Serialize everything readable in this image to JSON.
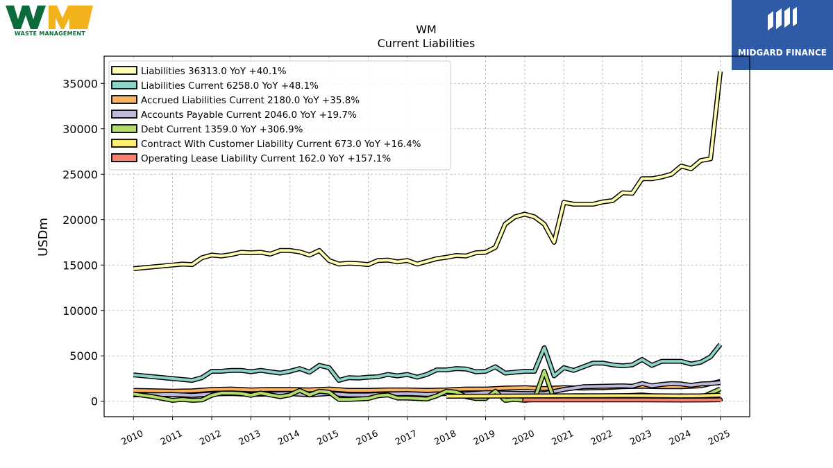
{
  "branding": {
    "left_logo_text": "WASTE MANAGEMENT",
    "right_logo_text": "MIDGARD FINANCE"
  },
  "chart_data": {
    "type": "line",
    "title": "WM",
    "subtitle": "Current  Liabilities",
    "xlabel": "",
    "ylabel": "USDm",
    "ylim": [
      -1700,
      38000
    ],
    "xlim": [
      2009.25,
      2025.75
    ],
    "yticks": [
      0,
      5000,
      10000,
      15000,
      20000,
      25000,
      30000,
      35000
    ],
    "ytick_labels": [
      "0",
      "5000",
      "10000",
      "15000",
      "20000",
      "25000",
      "30000",
      "35000"
    ],
    "xticks": [
      2010,
      2011,
      2012,
      2013,
      2014,
      2015,
      2016,
      2017,
      2018,
      2019,
      2020,
      2021,
      2022,
      2023,
      2024,
      2025
    ],
    "xtick_labels": [
      "2010",
      "2011",
      "2012",
      "2013",
      "2014",
      "2015",
      "2016",
      "2017",
      "2018",
      "2019",
      "2020",
      "2021",
      "2022",
      "2023",
      "2024",
      "2025"
    ],
    "grid": true,
    "legend_position": "top-left",
    "series": [
      {
        "name": "Liabilities  36313.0 YoY +40.1%",
        "color": "#ffffb3",
        "points": [
          [
            2010.0,
            14600
          ],
          [
            2011.0,
            15000
          ],
          [
            2011.25,
            15100
          ],
          [
            2011.5,
            15050
          ],
          [
            2011.75,
            15800
          ],
          [
            2012.0,
            16100
          ],
          [
            2012.25,
            16000
          ],
          [
            2012.5,
            16150
          ],
          [
            2012.75,
            16400
          ],
          [
            2013.0,
            16350
          ],
          [
            2013.25,
            16400
          ],
          [
            2013.5,
            16200
          ],
          [
            2013.75,
            16600
          ],
          [
            2014.0,
            16600
          ],
          [
            2014.25,
            16450
          ],
          [
            2014.5,
            16100
          ],
          [
            2014.75,
            16600
          ],
          [
            2015.0,
            15500
          ],
          [
            2015.25,
            15100
          ],
          [
            2015.5,
            15200
          ],
          [
            2015.75,
            15150
          ],
          [
            2016.0,
            15050
          ],
          [
            2016.25,
            15500
          ],
          [
            2016.5,
            15550
          ],
          [
            2016.75,
            15350
          ],
          [
            2017.0,
            15500
          ],
          [
            2017.25,
            15100
          ],
          [
            2017.5,
            15400
          ],
          [
            2017.75,
            15700
          ],
          [
            2018.0,
            15850
          ],
          [
            2018.25,
            16050
          ],
          [
            2018.5,
            16000
          ],
          [
            2018.75,
            16350
          ],
          [
            2019.0,
            16400
          ],
          [
            2019.25,
            16950
          ],
          [
            2019.5,
            19500
          ],
          [
            2019.75,
            20300
          ],
          [
            2020.0,
            20600
          ],
          [
            2020.25,
            20300
          ],
          [
            2020.5,
            19500
          ],
          [
            2020.75,
            17500
          ],
          [
            2021.0,
            21900
          ],
          [
            2021.25,
            21700
          ],
          [
            2021.5,
            21700
          ],
          [
            2021.75,
            21700
          ],
          [
            2022.0,
            21950
          ],
          [
            2022.25,
            22100
          ],
          [
            2022.5,
            22950
          ],
          [
            2022.75,
            22900
          ],
          [
            2023.0,
            24500
          ],
          [
            2023.25,
            24500
          ],
          [
            2023.5,
            24700
          ],
          [
            2023.75,
            25000
          ],
          [
            2024.0,
            25900
          ],
          [
            2024.25,
            25600
          ],
          [
            2024.5,
            26500
          ],
          [
            2024.75,
            26700
          ],
          [
            2025.0,
            36313
          ]
        ]
      },
      {
        "name": "Liabilities Current  6258.0 YoY +48.1%",
        "color": "#8dd3c7",
        "points": [
          [
            2010.0,
            2900
          ],
          [
            2011.0,
            2500
          ],
          [
            2011.25,
            2400
          ],
          [
            2011.5,
            2300
          ],
          [
            2011.75,
            2600
          ],
          [
            2012.0,
            3300
          ],
          [
            2012.25,
            3300
          ],
          [
            2012.5,
            3400
          ],
          [
            2012.75,
            3400
          ],
          [
            2013.0,
            3250
          ],
          [
            2013.25,
            3400
          ],
          [
            2013.5,
            3250
          ],
          [
            2013.75,
            3100
          ],
          [
            2014.0,
            3300
          ],
          [
            2014.25,
            3600
          ],
          [
            2014.5,
            3200
          ],
          [
            2014.75,
            3950
          ],
          [
            2015.0,
            3700
          ],
          [
            2015.25,
            2300
          ],
          [
            2015.5,
            2600
          ],
          [
            2015.75,
            2550
          ],
          [
            2016.0,
            2650
          ],
          [
            2016.25,
            2700
          ],
          [
            2016.5,
            2950
          ],
          [
            2016.75,
            2800
          ],
          [
            2017.0,
            2950
          ],
          [
            2017.25,
            2650
          ],
          [
            2017.5,
            2950
          ],
          [
            2017.75,
            3450
          ],
          [
            2018.0,
            3450
          ],
          [
            2018.25,
            3600
          ],
          [
            2018.5,
            3550
          ],
          [
            2018.75,
            3250
          ],
          [
            2019.0,
            3300
          ],
          [
            2019.25,
            3800
          ],
          [
            2019.5,
            3100
          ],
          [
            2019.75,
            3200
          ],
          [
            2020.0,
            3300
          ],
          [
            2020.25,
            3300
          ],
          [
            2020.5,
            5900
          ],
          [
            2020.75,
            2800
          ],
          [
            2021.0,
            3700
          ],
          [
            2021.25,
            3400
          ],
          [
            2021.5,
            3800
          ],
          [
            2021.75,
            4200
          ],
          [
            2022.0,
            4200
          ],
          [
            2022.25,
            4000
          ],
          [
            2022.5,
            3900
          ],
          [
            2022.75,
            4000
          ],
          [
            2023.0,
            4600
          ],
          [
            2023.25,
            3950
          ],
          [
            2023.5,
            4400
          ],
          [
            2023.75,
            4400
          ],
          [
            2024.0,
            4400
          ],
          [
            2024.25,
            4100
          ],
          [
            2024.5,
            4300
          ],
          [
            2024.75,
            4900
          ],
          [
            2025.0,
            6258
          ]
        ]
      },
      {
        "name": "Accrued Liabilities Current  2180.0 YoY +35.8%",
        "color": "#fdb462",
        "points": [
          [
            2010.0,
            1200
          ],
          [
            2011.0,
            1100
          ],
          [
            2011.5,
            1150
          ],
          [
            2012.0,
            1300
          ],
          [
            2012.5,
            1350
          ],
          [
            2013.0,
            1250
          ],
          [
            2013.5,
            1300
          ],
          [
            2014.0,
            1300
          ],
          [
            2014.5,
            1250
          ],
          [
            2015.0,
            1350
          ],
          [
            2015.5,
            1200
          ],
          [
            2016.0,
            1200
          ],
          [
            2016.5,
            1250
          ],
          [
            2017.0,
            1250
          ],
          [
            2017.5,
            1200
          ],
          [
            2018.0,
            1250
          ],
          [
            2018.5,
            1350
          ],
          [
            2019.0,
            1350
          ],
          [
            2019.5,
            1450
          ],
          [
            2020.0,
            1500
          ],
          [
            2020.5,
            1400
          ],
          [
            2021.0,
            1500
          ],
          [
            2021.5,
            1450
          ],
          [
            2022.0,
            1500
          ],
          [
            2022.5,
            1600
          ],
          [
            2023.0,
            1650
          ],
          [
            2023.5,
            1600
          ],
          [
            2024.0,
            1600
          ],
          [
            2024.5,
            1700
          ],
          [
            2025.0,
            2180
          ]
        ]
      },
      {
        "name": "Accounts Payable Current  2046.0 YoY +19.7%",
        "color": "#bebada",
        "points": [
          [
            2010.0,
            700
          ],
          [
            2011.0,
            750
          ],
          [
            2011.5,
            650
          ],
          [
            2012.0,
            800
          ],
          [
            2012.5,
            850
          ],
          [
            2013.0,
            750
          ],
          [
            2013.5,
            800
          ],
          [
            2014.0,
            850
          ],
          [
            2014.5,
            700
          ],
          [
            2015.0,
            850
          ],
          [
            2015.5,
            700
          ],
          [
            2016.0,
            700
          ],
          [
            2016.5,
            800
          ],
          [
            2017.0,
            850
          ],
          [
            2017.5,
            750
          ],
          [
            2018.0,
            850
          ],
          [
            2018.5,
            800
          ],
          [
            2019.0,
            950
          ],
          [
            2019.5,
            900
          ],
          [
            2020.0,
            850
          ],
          [
            2020.5,
            850
          ],
          [
            2021.0,
            1300
          ],
          [
            2021.5,
            1600
          ],
          [
            2022.0,
            1650
          ],
          [
            2022.5,
            1700
          ],
          [
            2022.75,
            1650
          ],
          [
            2023.0,
            1950
          ],
          [
            2023.25,
            1700
          ],
          [
            2023.5,
            1850
          ],
          [
            2023.75,
            1950
          ],
          [
            2024.0,
            1900
          ],
          [
            2024.25,
            1750
          ],
          [
            2024.5,
            1900
          ],
          [
            2024.75,
            1950
          ],
          [
            2025.0,
            2046
          ]
        ]
      },
      {
        "name": "Debt Current  1359.0 YoY +306.9%",
        "color": "#b3de69",
        "points": [
          [
            2010.0,
            800
          ],
          [
            2010.5,
            500
          ],
          [
            2011.0,
            100
          ],
          [
            2011.25,
            200
          ],
          [
            2011.5,
            100
          ],
          [
            2011.75,
            150
          ],
          [
            2012.0,
            650
          ],
          [
            2012.25,
            900
          ],
          [
            2012.5,
            900
          ],
          [
            2012.75,
            850
          ],
          [
            2013.0,
            650
          ],
          [
            2013.25,
            900
          ],
          [
            2013.5,
            700
          ],
          [
            2013.75,
            500
          ],
          [
            2014.0,
            700
          ],
          [
            2014.25,
            1200
          ],
          [
            2014.5,
            700
          ],
          [
            2014.75,
            1100
          ],
          [
            2015.0,
            1000
          ],
          [
            2015.25,
            200
          ],
          [
            2015.5,
            200
          ],
          [
            2015.75,
            250
          ],
          [
            2016.0,
            300
          ],
          [
            2016.25,
            600
          ],
          [
            2016.5,
            700
          ],
          [
            2016.75,
            350
          ],
          [
            2017.0,
            350
          ],
          [
            2017.25,
            300
          ],
          [
            2017.5,
            250
          ],
          [
            2017.75,
            600
          ],
          [
            2018.0,
            1100
          ],
          [
            2018.25,
            1000
          ],
          [
            2018.5,
            500
          ],
          [
            2018.75,
            300
          ],
          [
            2019.0,
            300
          ],
          [
            2019.25,
            1100
          ],
          [
            2019.5,
            100
          ],
          [
            2019.75,
            200
          ],
          [
            2020.0,
            100
          ],
          [
            2020.25,
            200
          ],
          [
            2020.5,
            3300
          ],
          [
            2020.75,
            200
          ],
          [
            2021.0,
            400
          ],
          [
            2021.25,
            600
          ],
          [
            2021.5,
            600
          ],
          [
            2021.75,
            550
          ],
          [
            2022.0,
            500
          ],
          [
            2022.5,
            600
          ],
          [
            2023.0,
            700
          ],
          [
            2023.5,
            500
          ],
          [
            2024.0,
            600
          ],
          [
            2024.5,
            400
          ],
          [
            2025.0,
            1359
          ]
        ]
      },
      {
        "name": "Contract With Customer Liability Current  673.0 YoY +16.4%",
        "color": "#ffed6f",
        "points": [
          [
            2018.0,
            550
          ],
          [
            2019.0,
            560
          ],
          [
            2020.0,
            580
          ],
          [
            2021.0,
            600
          ],
          [
            2022.0,
            610
          ],
          [
            2023.0,
            620
          ],
          [
            2024.0,
            580
          ],
          [
            2024.5,
            600
          ],
          [
            2025.0,
            673
          ]
        ]
      },
      {
        "name": "Operating Lease Liability Current  162.0 YoY +157.1%",
        "color": "#fb8072",
        "points": [
          [
            2020.0,
            0
          ],
          [
            2020.0,
            150
          ],
          [
            2021.0,
            150
          ],
          [
            2022.0,
            150
          ],
          [
            2023.0,
            150
          ],
          [
            2024.0,
            130
          ],
          [
            2024.5,
            140
          ],
          [
            2025.0,
            162
          ],
          [
            2025.0,
            0
          ]
        ]
      }
    ]
  }
}
